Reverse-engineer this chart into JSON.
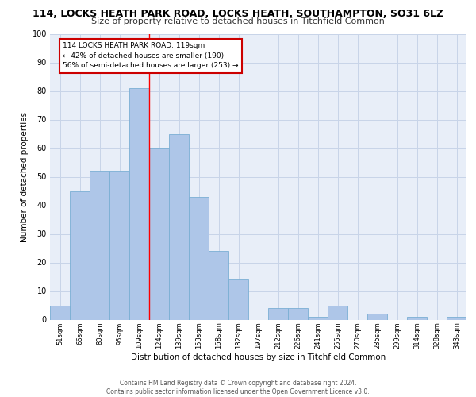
{
  "title_line1": "114, LOCKS HEATH PARK ROAD, LOCKS HEATH, SOUTHAMPTON, SO31 6LZ",
  "title_line2": "Size of property relative to detached houses in Titchfield Common",
  "xlabel": "Distribution of detached houses by size in Titchfield Common",
  "ylabel": "Number of detached properties",
  "categories": [
    "51sqm",
    "66sqm",
    "80sqm",
    "95sqm",
    "109sqm",
    "124sqm",
    "139sqm",
    "153sqm",
    "168sqm",
    "182sqm",
    "197sqm",
    "212sqm",
    "226sqm",
    "241sqm",
    "255sqm",
    "270sqm",
    "285sqm",
    "299sqm",
    "314sqm",
    "328sqm",
    "343sqm"
  ],
  "values": [
    5,
    45,
    52,
    52,
    81,
    60,
    65,
    43,
    24,
    14,
    0,
    4,
    4,
    1,
    5,
    0,
    2,
    0,
    1,
    0,
    1
  ],
  "bar_color": "#aec6e8",
  "bar_edge_color": "#7aafd4",
  "annotation_text": "114 LOCKS HEATH PARK ROAD: 119sqm\n← 42% of detached houses are smaller (190)\n56% of semi-detached houses are larger (253) →",
  "redline_x": 4.5,
  "annotation_box_color": "#ffffff",
  "annotation_box_edge_color": "#cc0000",
  "grid_color": "#c8d4e8",
  "background_color": "#e8eef8",
  "footer_text": "Contains HM Land Registry data © Crown copyright and database right 2024.\nContains public sector information licensed under the Open Government Licence v3.0.",
  "ylim": [
    0,
    100
  ],
  "yticks": [
    0,
    10,
    20,
    30,
    40,
    50,
    60,
    70,
    80,
    90,
    100
  ],
  "title1_fontsize": 9,
  "title2_fontsize": 8,
  "xlabel_fontsize": 7.5,
  "ylabel_fontsize": 7.5,
  "xtick_fontsize": 6,
  "ytick_fontsize": 7,
  "annotation_fontsize": 6.5,
  "footer_fontsize": 5.5
}
